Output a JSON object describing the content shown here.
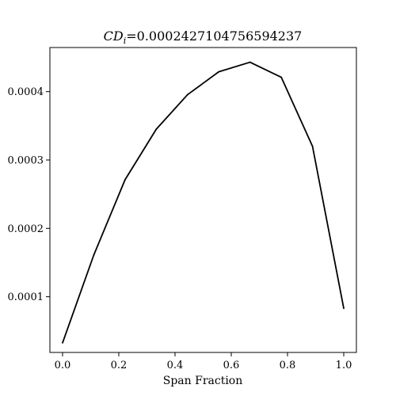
{
  "chart_data": {
    "type": "line",
    "title_symbol": "CD",
    "title_subscript": "i",
    "title_value": "=0.0002427104756594237",
    "xlabel": "Span Fraction",
    "ylabel": "",
    "xlim": [
      -0.045,
      1.045
    ],
    "ylim": [
      1.85e-05,
      0.0004645
    ],
    "xticks": [
      0.0,
      0.2,
      0.4,
      0.6,
      0.8,
      1.0
    ],
    "xtick_labels": [
      "0.0",
      "0.2",
      "0.4",
      "0.6",
      "0.8",
      "1.0"
    ],
    "yticks": [
      0.0001,
      0.0002,
      0.0003,
      0.0004
    ],
    "ytick_labels": [
      "0.0001",
      "0.0002",
      "0.0003",
      "0.0004"
    ],
    "grid": false,
    "legend": false,
    "series": [
      {
        "color": "#000000",
        "x": [
          0.0,
          0.1111,
          0.2222,
          0.3333,
          0.4444,
          0.5556,
          0.6667,
          0.7778,
          0.8889,
          1.0
        ],
        "y": [
          3.25e-05,
          0.000161,
          0.000271,
          0.000345,
          0.0003955,
          0.000429,
          0.000443,
          0.000421,
          0.00032,
          8.3e-05
        ]
      }
    ]
  }
}
